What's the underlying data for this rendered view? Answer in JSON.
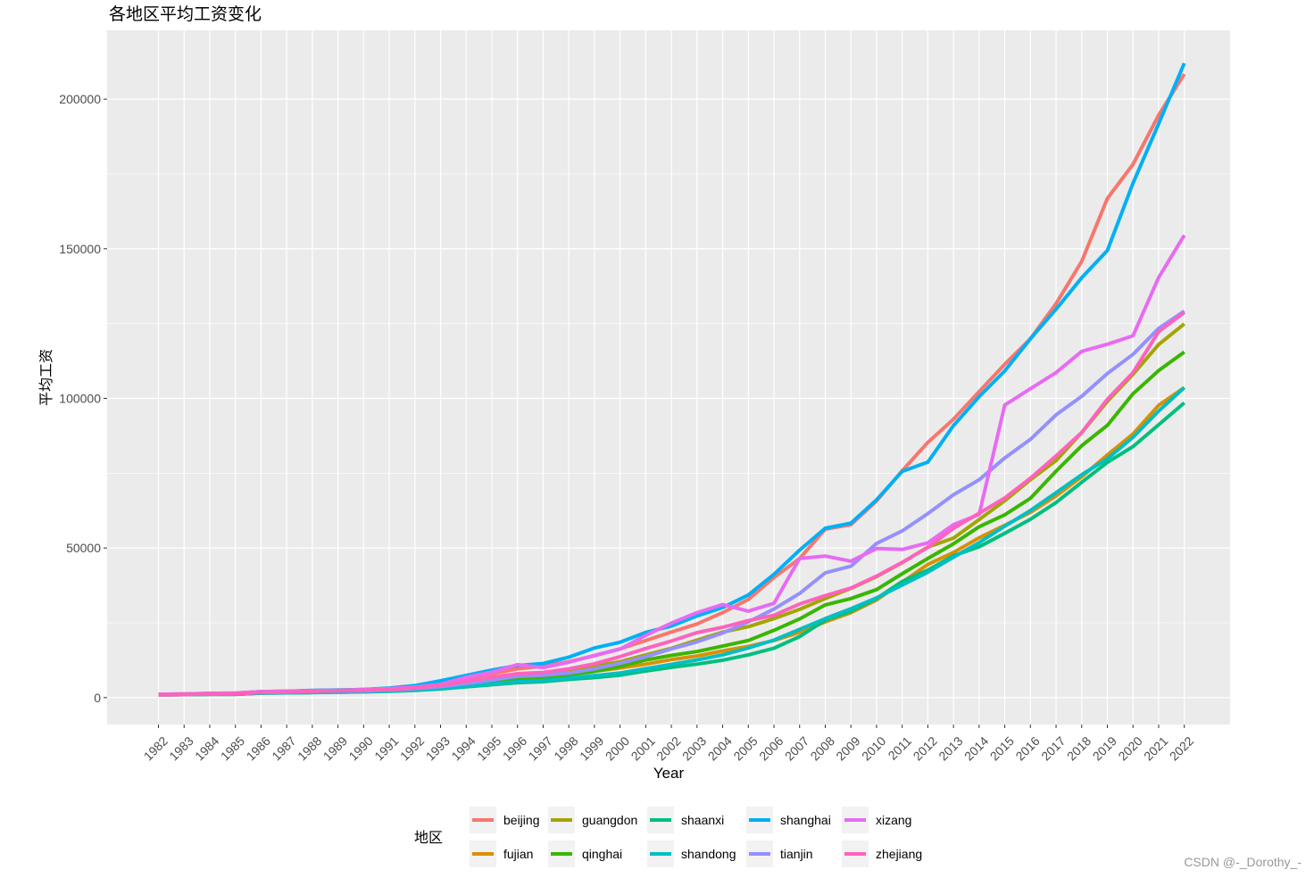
{
  "chart_data": {
    "type": "line",
    "title": "各地区平均工资变化",
    "xlabel": "Year",
    "ylabel": "平均工资",
    "legend_title": "地区",
    "legend_position": "bottom",
    "grid": true,
    "ylim": [
      -9000,
      223000
    ],
    "yticks": [
      0,
      50000,
      100000,
      150000,
      200000
    ],
    "ytick_labels": [
      "0",
      "50000",
      "100000",
      "150000",
      "200000"
    ],
    "x": [
      1982,
      1983,
      1984,
      1985,
      1986,
      1987,
      1988,
      1989,
      1990,
      1991,
      1992,
      1993,
      1994,
      1995,
      1996,
      1997,
      1998,
      1999,
      2000,
      2001,
      2002,
      2003,
      2004,
      2005,
      2006,
      2007,
      2008,
      2009,
      2010,
      2011,
      2012,
      2013,
      2014,
      2015,
      2016,
      2017,
      2018,
      2019,
      2020,
      2021,
      2022
    ],
    "series": [
      {
        "name": "beijing",
        "color": "#F8766D",
        "values": [
          1000,
          1100,
          1400,
          1500,
          2000,
          2100,
          2300,
          2400,
          2600,
          2900,
          3400,
          4600,
          6600,
          8000,
          9600,
          10500,
          12000,
          14000,
          16300,
          19100,
          21900,
          24600,
          28400,
          32800,
          40100,
          46500,
          56300,
          57800,
          65700,
          75800,
          85300,
          93000,
          102300,
          111400,
          119900,
          131700,
          145800,
          166800,
          178200,
          194700,
          208400
        ]
      },
      {
        "name": "fujian",
        "color": "#D89000",
        "values": [
          900,
          1000,
          1100,
          1100,
          1500,
          1600,
          1700,
          1900,
          2000,
          2200,
          2600,
          3100,
          4300,
          5100,
          6100,
          6900,
          7800,
          8800,
          9900,
          11200,
          12700,
          13900,
          15600,
          17100,
          19100,
          21800,
          25300,
          28400,
          32600,
          38600,
          44500,
          48500,
          53400,
          57600,
          61900,
          67400,
          73800,
          81100,
          88100,
          97700,
          103600
        ]
      },
      {
        "name": "guangdon",
        "color": "#A3A500",
        "values": [
          1100,
          1200,
          1400,
          1400,
          2000,
          2100,
          2300,
          2500,
          2700,
          3000,
          3500,
          4300,
          5500,
          6700,
          7900,
          8300,
          9300,
          10600,
          12000,
          14300,
          16500,
          19200,
          21900,
          23700,
          26400,
          29500,
          33100,
          36500,
          40400,
          45100,
          50300,
          53300,
          59500,
          65800,
          72800,
          79200,
          88600,
          99000,
          108000,
          118000,
          124900
        ]
      },
      {
        "name": "qinghai",
        "color": "#39B600",
        "values": [
          1000,
          1100,
          1300,
          1300,
          1700,
          1800,
          1900,
          2100,
          2200,
          2400,
          2800,
          3400,
          4200,
          5400,
          6000,
          6700,
          7600,
          8700,
          10400,
          12600,
          14100,
          15400,
          17200,
          19100,
          22500,
          26300,
          31000,
          33100,
          36100,
          41400,
          46500,
          51400,
          57100,
          61100,
          66600,
          75700,
          84200,
          91000,
          101500,
          109300,
          115500
        ]
      },
      {
        "name": "shaanxi",
        "color": "#00BF7D",
        "values": [
          900,
          1000,
          1100,
          1100,
          1500,
          1600,
          1700,
          1800,
          1900,
          2100,
          2400,
          2900,
          3600,
          4300,
          5000,
          5300,
          6100,
          6700,
          7500,
          8900,
          10100,
          11200,
          12500,
          14300,
          16500,
          20400,
          25900,
          28900,
          33100,
          38800,
          42600,
          47400,
          50400,
          54900,
          59600,
          65200,
          72000,
          78600,
          83900,
          91200,
          98500
        ]
      },
      {
        "name": "shandong",
        "color": "#00BFC4",
        "values": [
          900,
          1000,
          1100,
          1100,
          1500,
          1600,
          1700,
          1800,
          2000,
          2200,
          2500,
          3100,
          3800,
          4600,
          5300,
          5700,
          6500,
          7300,
          8200,
          9700,
          11100,
          12600,
          14300,
          16600,
          19200,
          22800,
          26400,
          29700,
          33300,
          37600,
          41900,
          46900,
          51800,
          57300,
          62500,
          68500,
          74500,
          79800,
          87000,
          95800,
          103600
        ]
      },
      {
        "name": "shanghai",
        "color": "#00B0F6",
        "values": [
          1000,
          1100,
          1300,
          1400,
          2000,
          2100,
          2400,
          2500,
          2700,
          3200,
          4000,
          5600,
          7400,
          9200,
          10700,
          11400,
          13500,
          16600,
          18500,
          21800,
          23900,
          27300,
          30100,
          34300,
          41200,
          49300,
          56600,
          58300,
          66100,
          75600,
          78700,
          90900,
          100600,
          109200,
          119900,
          129800,
          140300,
          149400,
          171900,
          191800,
          212000
        ]
      },
      {
        "name": "tianjin",
        "color": "#9590FF",
        "values": [
          1000,
          1100,
          1200,
          1300,
          1800,
          1900,
          2100,
          2200,
          2300,
          2600,
          3000,
          3700,
          4700,
          5900,
          7100,
          7500,
          8200,
          9600,
          11500,
          13700,
          16300,
          18600,
          21600,
          25300,
          29600,
          34800,
          41700,
          43900,
          51500,
          55700,
          61500,
          67800,
          72800,
          80100,
          86300,
          94500,
          100700,
          108300,
          114700,
          123400,
          129200
        ]
      },
      {
        "name": "xizang",
        "color": "#E76BF3",
        "values": [
          1100,
          1200,
          1400,
          1500,
          2000,
          2100,
          2300,
          2400,
          2700,
          3000,
          3500,
          4400,
          6800,
          8500,
          11000,
          10000,
          11800,
          14100,
          16200,
          20800,
          24900,
          28400,
          31100,
          28900,
          31500,
          46500,
          47300,
          45600,
          49800,
          49500,
          51700,
          57800,
          61200,
          97800,
          103200,
          108600,
          115700,
          118100,
          120900,
          140400,
          154500
        ]
      },
      {
        "name": "zhejiang",
        "color": "#FF62BC",
        "values": [
          900,
          1000,
          1200,
          1300,
          1700,
          1800,
          2100,
          2300,
          2400,
          2700,
          3200,
          4100,
          5500,
          6800,
          8000,
          8400,
          9600,
          11300,
          13700,
          16400,
          18900,
          21700,
          23500,
          25700,
          27500,
          31300,
          34100,
          36600,
          40600,
          45200,
          50200,
          56600,
          61600,
          66700,
          73300,
          80800,
          88600,
          99700,
          108600,
          122300,
          128700
        ]
      }
    ]
  },
  "legend": {
    "title": "地区",
    "items": [
      "beijing",
      "fujian",
      "guangdon",
      "qinghai",
      "shaanxi",
      "shandong",
      "shanghai",
      "tianjin",
      "xizang",
      "zhejiang"
    ]
  },
  "watermark": "CSDN @-_Dorothy_-"
}
